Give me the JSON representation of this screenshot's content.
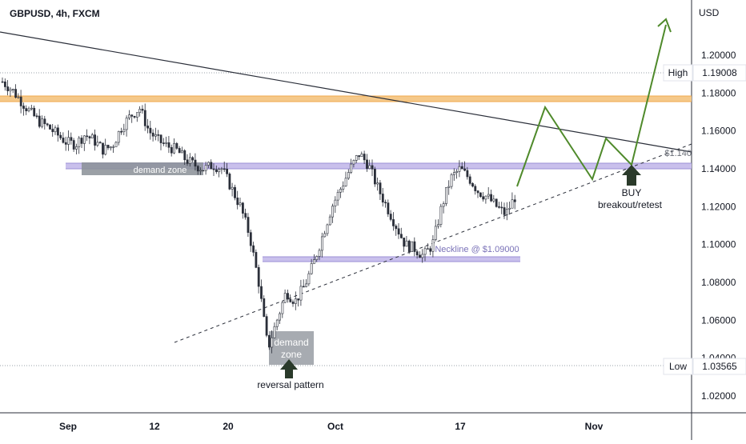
{
  "header": {
    "symbol_label": "GBPUSD, 4h, FXCM"
  },
  "price_axis": {
    "currency": "USD",
    "ticks": [
      "1.20000",
      "1.18000",
      "1.16000",
      "1.14000",
      "1.12000",
      "1.10000",
      "1.08000",
      "1.06000",
      "1.04000",
      "1.02000"
    ]
  },
  "time_axis": {
    "ticks": [
      "Sep",
      "12",
      "20",
      "Oct",
      "17",
      "Nov"
    ]
  },
  "markers": {
    "high": {
      "label": "High",
      "value": "1.19008"
    },
    "low": {
      "label": "Low",
      "value": "1.03565"
    }
  },
  "annotations": {
    "demand_zone_upper": "demand zone",
    "demand_zone_lower": [
      "demand",
      "zone"
    ],
    "reversal": "reversal pattern",
    "neckline": "Neckline @ $1.09000",
    "buy_title": "BUY",
    "buy_sub": "breakout/retest",
    "level_label": "$1.140"
  },
  "colors": {
    "candle": "#2a2e39",
    "projection": "#4f8a2b",
    "resistance_zone": "#f5c98a",
    "neckline_zone": "#c9c0ec",
    "demand_zone": "#8a8f97",
    "trendline": "#2a2e39"
  },
  "chart_data": {
    "type": "candlestick",
    "symbol": "GBPUSD",
    "timeframe": "4h",
    "source": "FXCM",
    "y_range": [
      1.01,
      1.21
    ],
    "x_ticks": [
      "Sep",
      "12",
      "20",
      "Oct",
      "17",
      "Nov"
    ],
    "price_path_close": [
      1.186,
      1.182,
      1.176,
      1.17,
      1.165,
      1.162,
      1.158,
      1.154,
      1.153,
      1.158,
      1.155,
      1.15,
      1.152,
      1.162,
      1.168,
      1.172,
      1.16,
      1.155,
      1.152,
      1.15,
      1.145,
      1.142,
      1.14,
      1.142,
      1.14,
      1.13,
      1.12,
      1.105,
      1.08,
      1.045,
      1.06,
      1.075,
      1.07,
      1.078,
      1.09,
      1.105,
      1.12,
      1.13,
      1.14,
      1.148,
      1.142,
      1.13,
      1.12,
      1.11,
      1.1,
      1.098,
      1.094,
      1.1,
      1.12,
      1.135,
      1.14,
      1.135,
      1.128,
      1.125,
      1.12,
      1.116,
      1.125
    ],
    "levels": {
      "high": 1.19008,
      "low": 1.03565,
      "neckline": 1.09,
      "key_level": 1.14
    },
    "zones": [
      {
        "type": "resistance",
        "from": 1.174,
        "to": 1.177
      },
      {
        "type": "key",
        "from": 1.139,
        "to": 1.142
      },
      {
        "type": "neckline",
        "from": 1.0895,
        "to": 1.091
      }
    ],
    "projection_path": [
      1.125,
      1.16,
      1.133,
      1.155,
      1.14,
      1.205
    ]
  }
}
